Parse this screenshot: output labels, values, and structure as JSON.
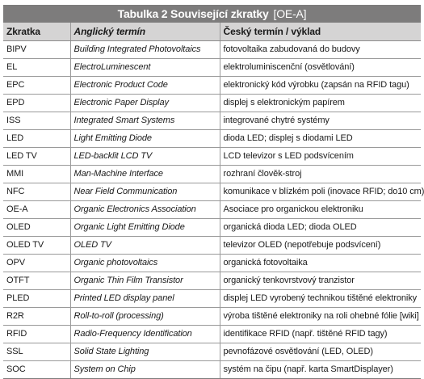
{
  "title": {
    "main": "Tabulka 2  Související zkratky",
    "sub": "[OE-A]"
  },
  "headers": [
    "Zkratka",
    "Anglický termín",
    "Český termín / výklad"
  ],
  "rows": [
    [
      "BIPV",
      "Building Integrated Photovoltaics",
      "fotovoltaika zabudovaná do budovy"
    ],
    [
      "EL",
      "ElectroLuminescent",
      "elektroluminiscenční (osvětlování)"
    ],
    [
      "EPC",
      "Electronic Product Code",
      "elektronický kód výrobku (zapsán na RFID tagu)"
    ],
    [
      "EPD",
      "Electronic Paper Display",
      "displej s elektronickým papírem"
    ],
    [
      "ISS",
      "Integrated Smart Systems",
      "integrované chytré systémy"
    ],
    [
      "LED",
      "Light Emitting Diode",
      "dioda LED; displej s diodami LED"
    ],
    [
      "LED TV",
      "LED-backlit LCD TV",
      "LCD televizor s LED podsvícením"
    ],
    [
      "MMI",
      "Man-Machine Interface",
      "rozhraní člověk-stroj"
    ],
    [
      "NFC",
      "Near Field Communication",
      "komunikace v blízkém poli (inovace RFID; do10 cm)"
    ],
    [
      "OE-A",
      "Organic Electronics Association",
      "Asociace pro organickou elektroniku"
    ],
    [
      "OLED",
      "Organic Light Emitting Diode",
      "organická dioda LED; dioda OLED"
    ],
    [
      "OLED TV",
      "OLED TV",
      "televizor OLED (nepotřebuje podsvícení)"
    ],
    [
      "OPV",
      "Organic photovoltaics",
      "organická fotovoltaika"
    ],
    [
      "OTFT",
      "Organic Thin Film Transistor",
      "organický tenkovrstvový tranzistor"
    ],
    [
      "PLED",
      "Printed LED display panel",
      "displej LED vyrobený technikou tištěné elektroniky"
    ],
    [
      "R2R",
      "Roll-to-roll (processing)",
      "výroba tištěné elektroniky na roli ohebné fólie [wiki]"
    ],
    [
      "RFID",
      "Radio-Frequency Identification",
      "identifikace RFID (např. tištěné RFID tagy)"
    ],
    [
      "SSL",
      "Solid State Lighting",
      "pevnofázové osvětlování (LED, OLED)"
    ],
    [
      "SOC",
      "System on Chip",
      "systém na čipu (např. karta SmartDisplayer)"
    ]
  ]
}
